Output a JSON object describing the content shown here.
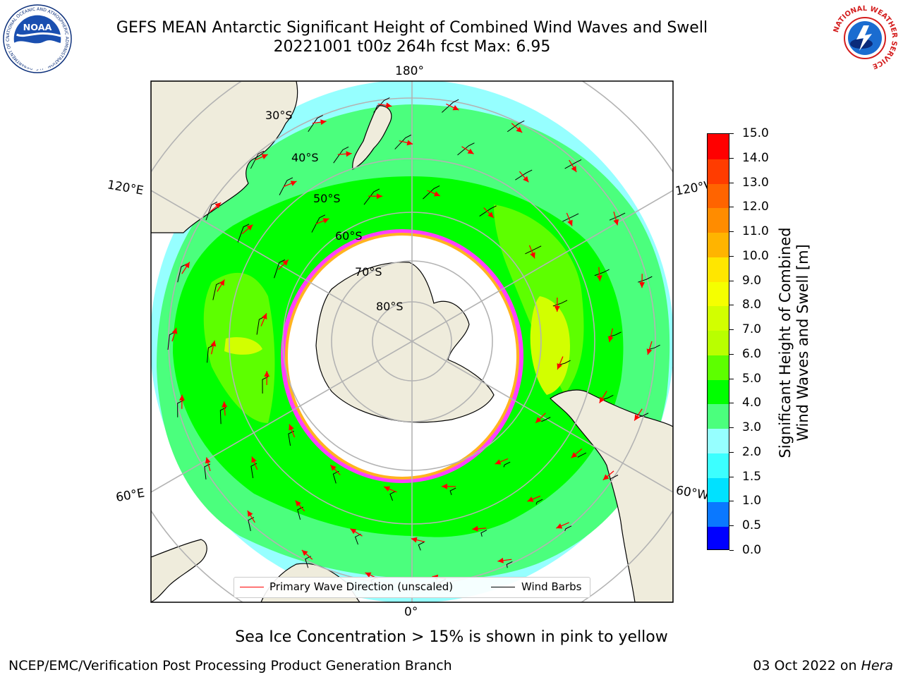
{
  "title": {
    "line1": "GEFS MEAN Antarctic Significant Height of Combined Wind Waves and Swell",
    "line2": "20221001 t00z 264h fcst   Max: 6.95"
  },
  "logos": {
    "left": "noaa-logo",
    "right": "nws-logo",
    "noaa_text": "NOAA",
    "nws_text": "NATIONAL WEATHER SERVICE",
    "noaa_ring_text": "NATIONAL OCEANIC AND ATMOSPHERIC ADMINISTRATION · U.S. DEPARTMENT OF COMMERCE"
  },
  "map": {
    "projection": "south-polar-stereographic",
    "lat_labels": [
      "30°S",
      "40°S",
      "50°S",
      "60°S",
      "70°S",
      "80°S"
    ],
    "lon_labels": {
      "top": "180°",
      "upper_left": "120°E",
      "upper_right": "120°W",
      "lower_left": "60°E",
      "lower_right": "60°W",
      "bottom": "0°"
    },
    "colors": {
      "land": "#efecdc",
      "coast": "#000000",
      "grid": "#b3b3b3",
      "arrow": "#ff0000",
      "sea_ice_low": "#ff33ff",
      "sea_ice_high": "#ffb320"
    }
  },
  "legend": {
    "wave_direction": "Primary Wave Direction (unscaled)",
    "wind_barbs": "Wind Barbs"
  },
  "colorbar": {
    "label_line1": "Significant Height of Combined",
    "label_line2": "Wind Waves and Swell [m]",
    "ticks": [
      "0.0",
      "0.5",
      "1.0",
      "1.5",
      "2.0",
      "3.0",
      "4.0",
      "5.0",
      "6.0",
      "7.0",
      "8.0",
      "9.0",
      "10.0",
      "11.0",
      "12.0",
      "13.0",
      "14.0",
      "15.0"
    ],
    "colors": [
      "#0000ff",
      "#0a78ff",
      "#00e1ff",
      "#3cffff",
      "#96ffff",
      "#4bff7d",
      "#00ff00",
      "#5dff00",
      "#b9ff00",
      "#d2ff00",
      "#f5ff00",
      "#ffe600",
      "#ffb400",
      "#ff8c00",
      "#ff6400",
      "#ff3c00",
      "#ff0000"
    ]
  },
  "caption": "Sea Ice Concentration > 15% is shown in pink to yellow",
  "footer": {
    "left": "NCEP/EMC/Verification Post Processing Product Generation Branch",
    "right_date": "03 Oct 2022 on ",
    "right_host": "Hera"
  }
}
